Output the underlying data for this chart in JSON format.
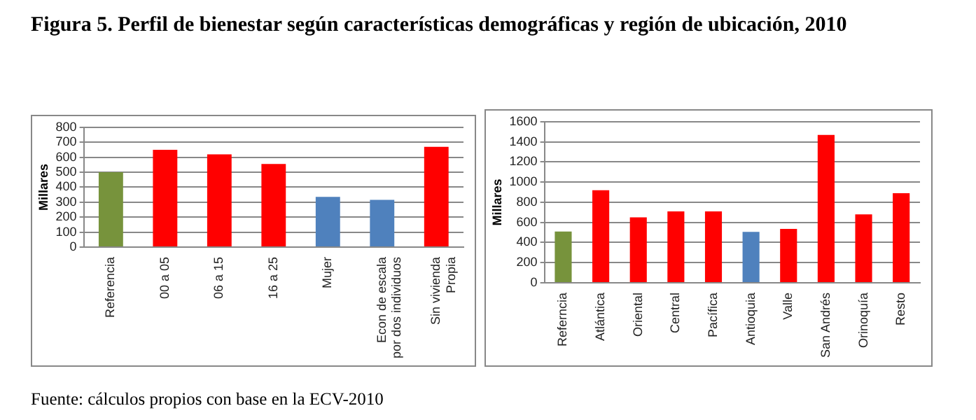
{
  "chart_data": [
    {
      "type": "bar",
      "title": "Figura 5. Perfil de bienestar según características demográficas y región de ubicación, 2010",
      "ylabel": "Millares",
      "categories": [
        "Referencia",
        "00 a 05",
        "06 a 15",
        "16 a 25",
        "Mujer",
        "Econ de escala por dos individuos",
        "Sin vivienda Propia"
      ],
      "values": [
        500,
        650,
        620,
        555,
        335,
        315,
        670
      ],
      "colors": [
        "#77933c",
        "#ff0000",
        "#ff0000",
        "#ff0000",
        "#4f81bd",
        "#4f81bd",
        "#ff0000"
      ],
      "ylim": [
        0,
        800
      ],
      "yticks": [
        0,
        100,
        200,
        300,
        400,
        500,
        600,
        700,
        800
      ],
      "grid": "y",
      "legend": false,
      "annotations": [
        "Fuente: cálculos propios con base en la ECV-2010"
      ]
    },
    {
      "type": "bar",
      "ylabel": "Millares",
      "categories": [
        "Referncia",
        "Atlántica",
        "Oriental",
        "Central",
        "Pacífica",
        "Antioquia",
        "Valle",
        "San Andrés",
        "Orinoquía",
        "Resto"
      ],
      "values": [
        510,
        920,
        650,
        710,
        710,
        505,
        535,
        1470,
        680,
        890
      ],
      "colors": [
        "#77933c",
        "#ff0000",
        "#ff0000",
        "#ff0000",
        "#ff0000",
        "#4f81bd",
        "#ff0000",
        "#ff0000",
        "#ff0000",
        "#ff0000"
      ],
      "ylim": [
        0,
        1600
      ],
      "yticks": [
        0,
        200,
        400,
        600,
        800,
        1000,
        1200,
        1400,
        1600
      ],
      "grid": "y",
      "legend": false
    }
  ]
}
